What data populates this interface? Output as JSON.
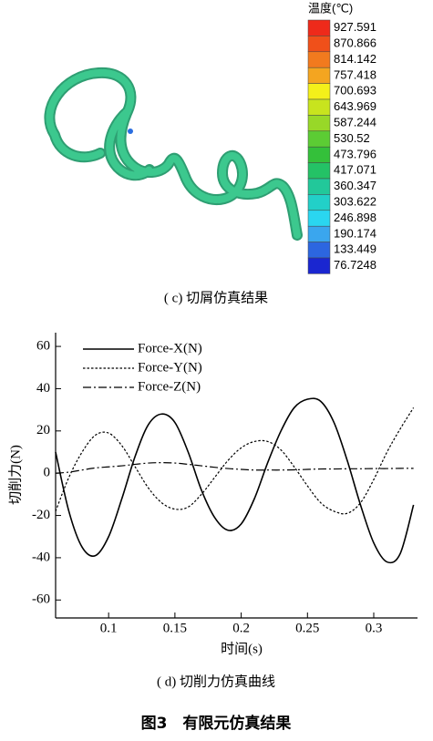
{
  "panel_c": {
    "legend_title": "温度(℃)",
    "levels": [
      {
        "label": "927.591",
        "color": "#ee2a1a"
      },
      {
        "label": "870.866",
        "color": "#f0501a"
      },
      {
        "label": "814.142",
        "color": "#f27a1e"
      },
      {
        "label": "757.418",
        "color": "#f4a520"
      },
      {
        "label": "700.693",
        "color": "#f4f01a"
      },
      {
        "label": "643.969",
        "color": "#c8e41e"
      },
      {
        "label": "587.244",
        "color": "#98d828"
      },
      {
        "label": "530.52",
        "color": "#5ccc34"
      },
      {
        "label": "473.796",
        "color": "#34c03a"
      },
      {
        "label": "417.071",
        "color": "#24c266"
      },
      {
        "label": "360.347",
        "color": "#22c89a"
      },
      {
        "label": "303.622",
        "color": "#22d0c8"
      },
      {
        "label": "246.898",
        "color": "#2ad6f0"
      },
      {
        "label": "190.174",
        "color": "#3aa6ee"
      },
      {
        "label": "133.449",
        "color": "#2c66e0"
      },
      {
        "label": "76.7248",
        "color": "#1a26d0"
      }
    ],
    "caption": "( c) 切屑仿真结果"
  },
  "chart_data": {
    "type": "line",
    "xlabel": "时间(s)",
    "ylabel": "切削力(N)",
    "x": [
      0.06,
      0.07,
      0.08,
      0.09,
      0.1,
      0.11,
      0.12,
      0.13,
      0.14,
      0.15,
      0.16,
      0.17,
      0.18,
      0.19,
      0.2,
      0.21,
      0.22,
      0.23,
      0.24,
      0.25,
      0.26,
      0.27,
      0.28,
      0.29,
      0.3,
      0.31,
      0.32,
      0.33
    ],
    "series": [
      {
        "name": "Force-X(N)",
        "color": "#000000",
        "style": "solid",
        "values": [
          10,
          -18,
          -35,
          -39,
          -30,
          -12,
          8,
          23,
          28,
          24,
          10,
          -8,
          -21,
          -27,
          -24,
          -12,
          5,
          20,
          31,
          35,
          34,
          24,
          6,
          -15,
          -33,
          -42,
          -38,
          -15
        ]
      },
      {
        "name": "Force-Y(N)",
        "color": "#000000",
        "style": "dotted",
        "values": [
          -18,
          -2,
          10,
          18,
          19,
          13,
          3,
          -7,
          -14,
          -17,
          -16,
          -10,
          -2,
          6,
          12,
          15,
          15,
          11,
          3,
          -6,
          -14,
          -18,
          -19,
          -14,
          -3,
          10,
          21,
          31
        ]
      },
      {
        "name": "Force-Z(N)",
        "color": "#000000",
        "style": "dashdot",
        "values": [
          0,
          0.5,
          1.5,
          2.5,
          3,
          3.5,
          4.2,
          4.8,
          5,
          4.8,
          4.2,
          3.5,
          2.8,
          2.2,
          1.8,
          1.5,
          1.5,
          1.5,
          1.6,
          1.8,
          2,
          2,
          2.1,
          2.1,
          2.2,
          2.2,
          2.3,
          2.3
        ]
      }
    ],
    "xlim": [
      0.06,
      0.333
    ],
    "xticks": [
      0.1,
      0.15,
      0.2,
      0.25,
      0.3
    ],
    "ylim": [
      -68.5,
      66.5
    ],
    "yticks": [
      -60,
      -40,
      -20,
      0,
      20,
      40,
      60
    ],
    "legend": "upper left",
    "caption": "( d) 切削力仿真曲线"
  },
  "figure_caption": "图3　有限元仿真结果"
}
